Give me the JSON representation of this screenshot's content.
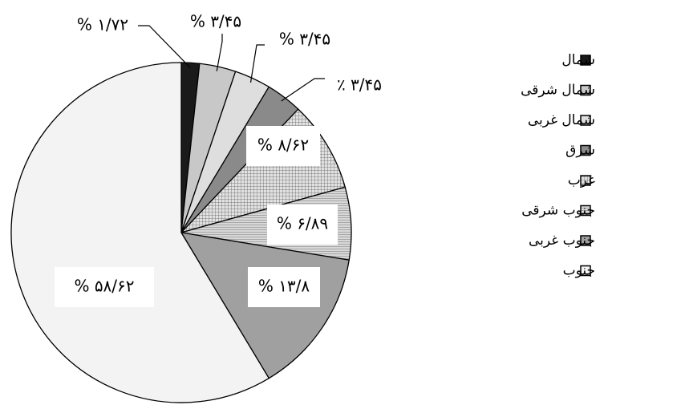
{
  "chart_data": {
    "type": "pie",
    "categories": [
      "شمال",
      "شمال شرقی",
      "شمال غربی",
      "شرق",
      "غرب",
      "جنوب شرقی",
      "جنوب غربی",
      "جنوب"
    ],
    "values": [
      1.72,
      3.45,
      3.45,
      3.45,
      8.62,
      6.89,
      13.8,
      58.62
    ],
    "labels": [
      "% ۱/۷۲",
      "% ۳/۴۵",
      "% ۳/۴۵",
      "٪ ۳/۴۵",
      "% ۸/۶۲",
      "% ۶/۸۹",
      "% ۱۳/۸",
      "% ۵۸/۶۲"
    ],
    "colors": [
      "#1a1a1a",
      "#c8c8c8",
      "#dedede",
      "#8a8a8a",
      "#b9b9b9",
      "#cfcfcf",
      "#a0a0a0",
      "#f3f3f3"
    ],
    "patterns": [
      "solid",
      "solid",
      "solid",
      "solid",
      "grid",
      "hatch",
      "solid",
      "solid"
    ],
    "legend_position": "right"
  }
}
